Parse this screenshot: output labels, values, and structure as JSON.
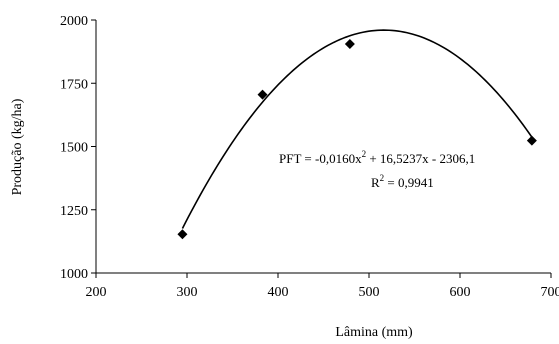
{
  "chart_data": {
    "type": "scatter",
    "xlabel": "Lâmina (mm)",
    "ylabel": "Produção (kg/ha)",
    "xlim": [
      200,
      700
    ],
    "ylim": [
      1000,
      2000
    ],
    "x_ticks": [
      200,
      300,
      400,
      500,
      600,
      700
    ],
    "y_ticks": [
      1000,
      1250,
      1500,
      1750,
      2000
    ],
    "x_tick_labels": [
      "200",
      "300",
      "400",
      "500",
      "600",
      "700"
    ],
    "y_tick_labels": [
      "1000",
      "1250",
      "1500",
      "1750",
      "2000"
    ],
    "grid": false,
    "series": [
      {
        "marker": "diamond",
        "color": "#000000",
        "x": [
          295,
          383,
          479,
          679
        ],
        "y": [
          1153,
          1705,
          1905,
          1523
        ]
      }
    ],
    "trendline": {
      "type": "polynomial",
      "coefficients": [
        -0.016,
        16.5237,
        -2306.1
      ],
      "color": "#000000"
    },
    "annotations": {
      "equation_prefix": "PFT = -0,0160x",
      "equation_exponent": "2",
      "equation_suffix": " + 16,5237x - 2306,1",
      "r2_prefix": "R",
      "r2_exponent": "2",
      "r2_suffix": " = 0,9941"
    }
  }
}
